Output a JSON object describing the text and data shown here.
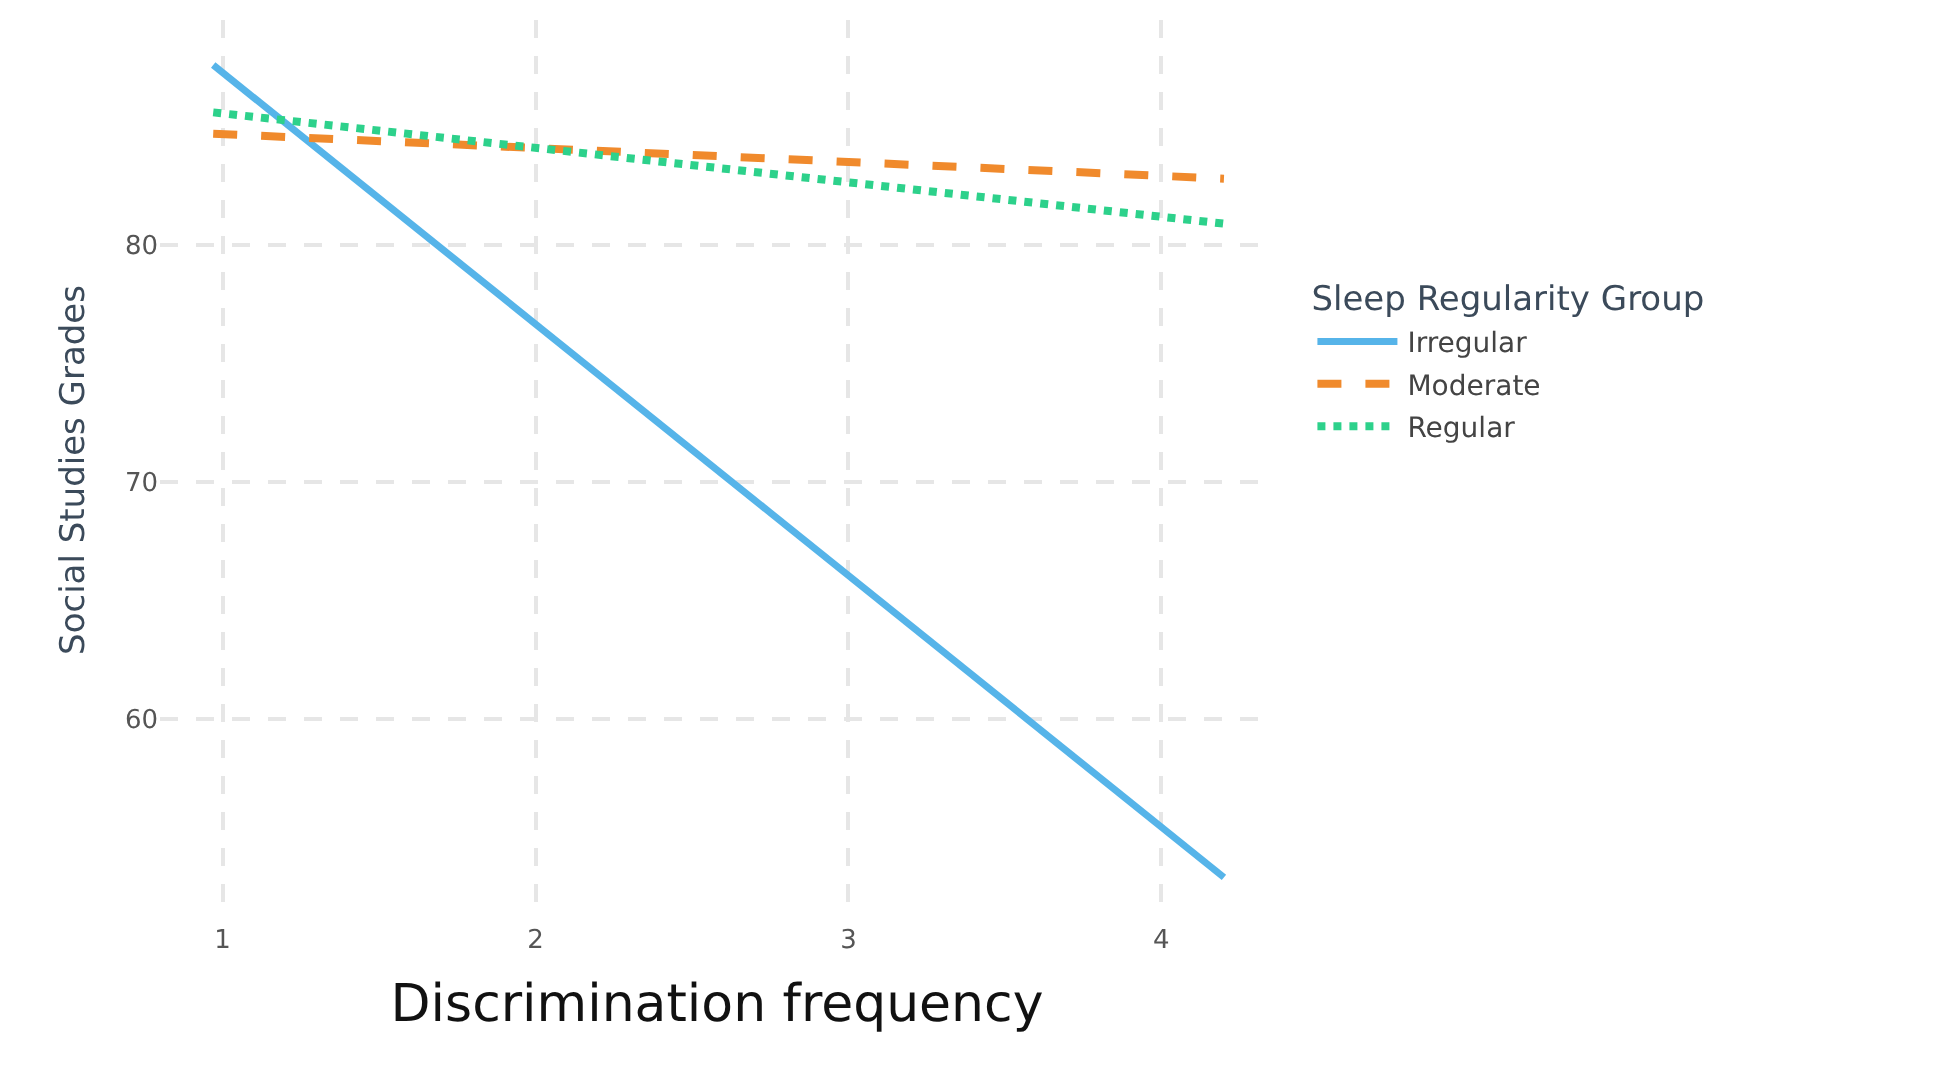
{
  "chart_data": {
    "type": "line",
    "xlabel": "Discrimination frequency",
    "ylabel": "Social Studies Grades",
    "legend_title": "Sleep Regularity Group",
    "x": [
      0.97,
      4.2
    ],
    "series": [
      {
        "name": "Irregular",
        "color": "#56b4e9",
        "values": [
          87.6,
          53.3
        ],
        "line_style": "solid"
      },
      {
        "name": "Moderate",
        "color": "#f08a2c",
        "values": [
          84.7,
          82.8
        ],
        "line_style": "dashed"
      },
      {
        "name": "Regular",
        "color": "#2dd18b",
        "values": [
          85.6,
          80.9
        ],
        "line_style": "dotted"
      }
    ],
    "xlim": [
      0.8,
      4.36
    ],
    "xticks": [
      1,
      2,
      3,
      4
    ],
    "ylim": [
      51.5,
      89.5
    ],
    "yticks": [
      60,
      70,
      80
    ],
    "grid": true,
    "legend": "right",
    "marker": "none"
  }
}
